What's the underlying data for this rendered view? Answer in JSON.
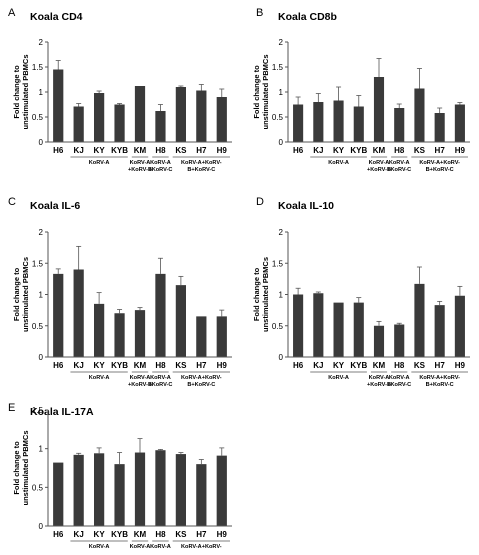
{
  "figure": {
    "colors": {
      "bar": "#3a3a3a",
      "axis": "#555555",
      "text": "#000000"
    }
  },
  "chart_data": [
    {
      "panel": "A",
      "title": "Koala CD4",
      "type": "bar",
      "ylabel_line1": "Fold change to",
      "ylabel_line2": "unstimulated PBMCs",
      "ylim": [
        0,
        2
      ],
      "yticks": [
        "0",
        "0.5",
        "1",
        "1.5",
        "2"
      ],
      "categories": [
        "H6",
        "KJ",
        "KY",
        "KYB",
        "KM",
        "H8",
        "KS",
        "H7",
        "H9"
      ],
      "values": [
        1.45,
        0.71,
        0.98,
        0.75,
        1.12,
        0.62,
        1.1,
        1.03,
        0.9
      ],
      "errors": [
        0.18,
        0.06,
        0.04,
        0.02,
        0.0,
        0.13,
        0.02,
        0.12,
        0.16
      ],
      "groups": [
        {
          "label": "KoRV-A",
          "from": 1,
          "to": 3
        },
        {
          "label": "KoRV-A\n+KoRV-B",
          "from": 4,
          "to": 4
        },
        {
          "label": "KoRV-A\n+KoRV-C",
          "from": 5,
          "to": 5
        },
        {
          "label": "KoRV-A+KoRV-\nB+KoRV-C",
          "from": 6,
          "to": 8
        }
      ]
    },
    {
      "panel": "B",
      "title": "Koala CD8b",
      "type": "bar",
      "ylabel_line1": "Fold change to",
      "ylabel_line2": "unstimulated PBMCs",
      "ylim": [
        0,
        2
      ],
      "yticks": [
        "0",
        "0.5",
        "1",
        "1.5",
        "2"
      ],
      "categories": [
        "H6",
        "KJ",
        "KY",
        "KYB",
        "KM",
        "H8",
        "KS",
        "H7",
        "H9"
      ],
      "values": [
        0.75,
        0.8,
        0.83,
        0.71,
        1.3,
        0.68,
        1.07,
        0.58,
        0.75
      ],
      "errors": [
        0.15,
        0.17,
        0.27,
        0.22,
        0.37,
        0.08,
        0.4,
        0.1,
        0.04
      ],
      "groups": [
        {
          "label": "KoRV-A",
          "from": 1,
          "to": 3
        },
        {
          "label": "KoRV-A\n+KoRV-B",
          "from": 4,
          "to": 4
        },
        {
          "label": "KoRV-A\n+KoRV-C",
          "from": 5,
          "to": 5
        },
        {
          "label": "KoRV-A+KoRV-\nB+KoRV-C",
          "from": 6,
          "to": 8
        }
      ]
    },
    {
      "panel": "C",
      "title": "Koala IL-6",
      "type": "bar",
      "ylabel_line1": "Fold change to",
      "ylabel_line2": "unstimulated PBMCs",
      "ylim": [
        0,
        2
      ],
      "yticks": [
        "0",
        "0.5",
        "1",
        "1.5",
        "2"
      ],
      "categories": [
        "H6",
        "KJ",
        "KY",
        "KYB",
        "KM",
        "H8",
        "KS",
        "H7",
        "H9"
      ],
      "values": [
        1.33,
        1.4,
        0.85,
        0.7,
        0.75,
        1.33,
        1.15,
        0.65,
        0.65
      ],
      "errors": [
        0.08,
        0.37,
        0.18,
        0.06,
        0.04,
        0.25,
        0.14,
        0.0,
        0.1
      ],
      "groups": [
        {
          "label": "KoRV-A",
          "from": 1,
          "to": 3
        },
        {
          "label": "KoRV-A\n+KoRV-B",
          "from": 4,
          "to": 4
        },
        {
          "label": "KoRV-A\n+KoRV-C",
          "from": 5,
          "to": 5
        },
        {
          "label": "KoRV-A+KoRV-\nB+KoRV-C",
          "from": 6,
          "to": 8
        }
      ]
    },
    {
      "panel": "D",
      "title": "Koala IL-10",
      "type": "bar",
      "ylabel_line1": "Fold change to",
      "ylabel_line2": "unstimulated PBMCs",
      "ylim": [
        0,
        2
      ],
      "yticks": [
        "0",
        "0.5",
        "1",
        "1.5",
        "2"
      ],
      "categories": [
        "H6",
        "KJ",
        "KY",
        "KYB",
        "KM",
        "H8",
        "KS",
        "H7",
        "H9"
      ],
      "values": [
        1.0,
        1.02,
        0.87,
        0.87,
        0.5,
        0.52,
        1.17,
        0.83,
        0.98
      ],
      "errors": [
        0.1,
        0.02,
        0.0,
        0.08,
        0.07,
        0.02,
        0.27,
        0.06,
        0.15
      ],
      "groups": [
        {
          "label": "KoRV-A",
          "from": 1,
          "to": 3
        },
        {
          "label": "KoRV-A\n+KoRV-B",
          "from": 4,
          "to": 4
        },
        {
          "label": "KoRV-A\n+KoRV-C",
          "from": 5,
          "to": 5
        },
        {
          "label": "KoRV-A+KoRV-\nB+KoRV-C",
          "from": 6,
          "to": 8
        }
      ]
    },
    {
      "panel": "E",
      "title": "Koala IL-17A",
      "type": "bar",
      "ylabel_line1": "Fold change to",
      "ylabel_line2": "unstimulated PBMCs",
      "ylim": [
        0,
        1.5
      ],
      "yticks": [
        "0",
        "0.5",
        "1",
        "1.5"
      ],
      "categories": [
        "H6",
        "KJ",
        "KY",
        "KYB",
        "KM",
        "H8",
        "KS",
        "H7",
        "H9"
      ],
      "values": [
        0.82,
        0.92,
        0.94,
        0.8,
        0.95,
        0.98,
        0.93,
        0.8,
        0.91
      ],
      "errors": [
        0.0,
        0.02,
        0.07,
        0.15,
        0.18,
        0.01,
        0.02,
        0.06,
        0.1
      ],
      "groups": [
        {
          "label": "KoRV-A",
          "from": 1,
          "to": 3
        },
        {
          "label": "KoRV-A\n+KoRV-B",
          "from": 4,
          "to": 4
        },
        {
          "label": "KoRV-A\n+KoRV-C",
          "from": 5,
          "to": 5
        },
        {
          "label": "KoRV-A+KoRV-\nB+KoRV-C",
          "from": 6,
          "to": 8
        }
      ]
    }
  ]
}
